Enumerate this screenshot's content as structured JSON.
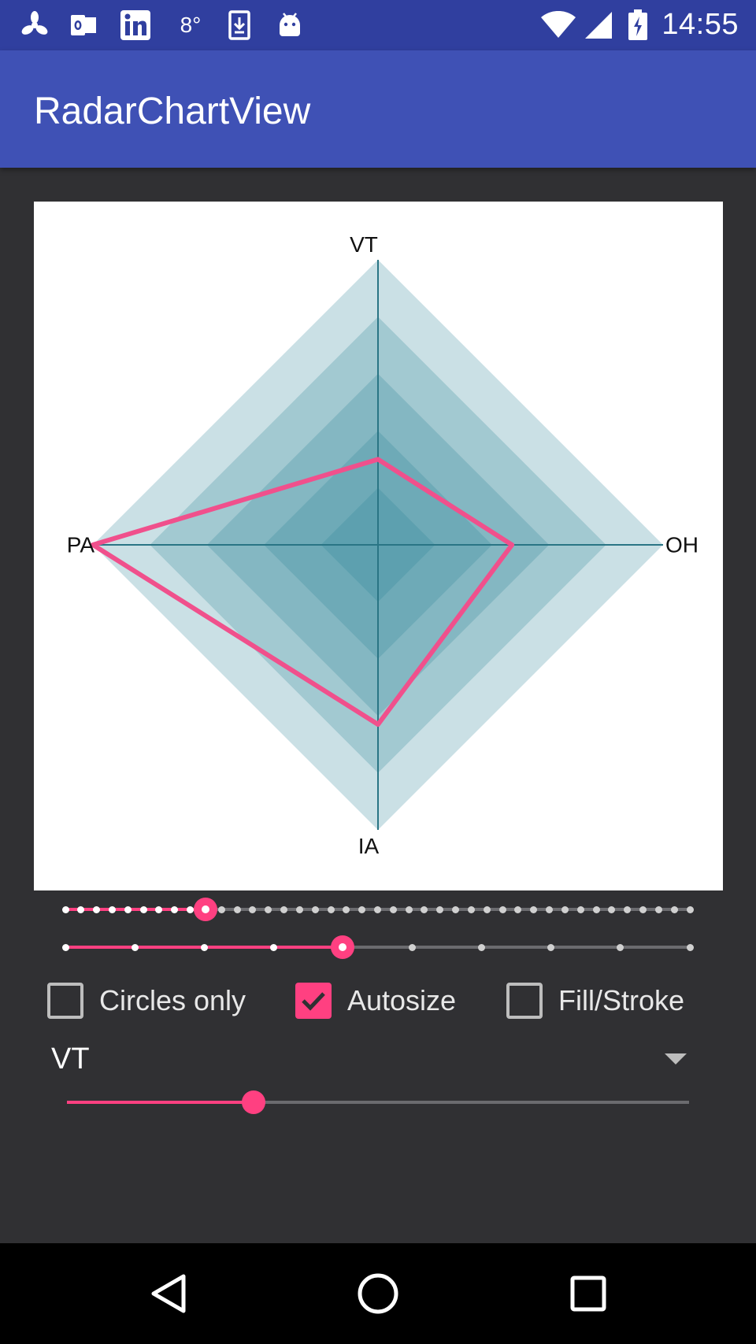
{
  "status_bar": {
    "time": "14:55",
    "icons": [
      "fan-icon",
      "outlook-icon",
      "linkedin-icon",
      "temperature-8-icon",
      "download-icon",
      "android-icon",
      "wifi-icon",
      "signal-icon",
      "battery-charging-icon"
    ],
    "temperature": "8°"
  },
  "app_bar": {
    "title": "RadarChartView"
  },
  "chart_data": {
    "type": "radar",
    "axes": [
      "VT",
      "OH",
      "IA",
      "PA"
    ],
    "values": [
      0.3,
      0.47,
      0.63,
      1.0
    ],
    "max": 1.0,
    "levels": 5,
    "series_color": "#F0508C",
    "web_color": "#2A8296",
    "background_color": "#FFFFFF"
  },
  "controls": {
    "slider_levels": {
      "position": 9,
      "count": 41
    },
    "slider_axes": {
      "position": 4,
      "count": 10
    },
    "checkboxes": [
      {
        "label": "Circles only",
        "checked": false
      },
      {
        "label": "Autosize",
        "checked": true
      },
      {
        "label": "Fill/Stroke",
        "checked": false
      }
    ],
    "axis_selector": {
      "value": "VT"
    },
    "slider_value": {
      "fraction": 0.3
    }
  },
  "colors": {
    "primary": "#3F51B5",
    "primary_dark": "#303F9F",
    "accent": "#FF4081",
    "background": "#303033"
  },
  "nav_bar": {
    "buttons": [
      "back-icon",
      "home-icon",
      "recents-icon"
    ]
  }
}
